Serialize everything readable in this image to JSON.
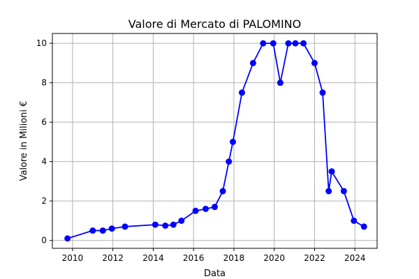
{
  "chart_data": {
    "type": "line",
    "title": "Valore di Mercato di PALOMINO",
    "xlabel": "Data",
    "ylabel": "Valore in Milioni €",
    "xlim": [
      2009.0,
      2025.1
    ],
    "ylim": [
      -0.4,
      10.5
    ],
    "xticks": [
      2010,
      2012,
      2014,
      2016,
      2018,
      2020,
      2022,
      2024
    ],
    "yticks": [
      0,
      2,
      4,
      6,
      8,
      10
    ],
    "grid": true,
    "series": [
      {
        "color": "#0000ff",
        "x": [
          2009.75,
          2011.0,
          2011.5,
          2011.95,
          2012.6,
          2014.1,
          2014.6,
          2015.0,
          2015.4,
          2016.1,
          2016.6,
          2017.05,
          2017.45,
          2017.75,
          2017.95,
          2018.4,
          2018.95,
          2019.45,
          2019.95,
          2020.3,
          2020.7,
          2021.05,
          2021.45,
          2022.0,
          2022.4,
          2022.7,
          2022.85,
          2023.45,
          2023.95,
          2024.45
        ],
        "y": [
          0.1,
          0.5,
          0.5,
          0.6,
          0.7,
          0.8,
          0.75,
          0.8,
          1.0,
          1.5,
          1.6,
          1.7,
          2.5,
          4.0,
          5.0,
          7.5,
          9.0,
          10.0,
          10.0,
          8.0,
          10.0,
          10.0,
          10.0,
          9.0,
          7.5,
          2.5,
          3.5,
          2.5,
          1.0,
          0.7
        ]
      }
    ]
  }
}
